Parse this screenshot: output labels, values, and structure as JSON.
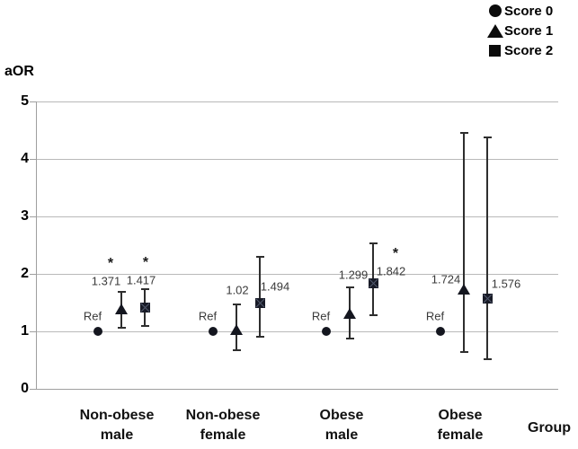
{
  "chart_data": {
    "type": "scatter",
    "title": "",
    "ylabel": "aOR",
    "xlabel": "Group",
    "ylim": [
      0,
      5
    ],
    "yticks": [
      0,
      1,
      2,
      3,
      4,
      5
    ],
    "grid": "horizontal",
    "legend": {
      "position": "top-right",
      "entries": [
        {
          "marker": "circle",
          "label": "Score 0"
        },
        {
          "marker": "triangle",
          "label": "Score 1"
        },
        {
          "marker": "square",
          "label": "Score 2"
        }
      ]
    },
    "categories": [
      [
        "Non-obese",
        "male"
      ],
      [
        "Non-obese",
        "female"
      ],
      [
        "Obese",
        "male"
      ],
      [
        "Obese",
        "female"
      ]
    ],
    "series": [
      {
        "name": "Score 0",
        "marker": "circle",
        "points": [
          {
            "group": 0,
            "value": 1,
            "label": "Ref"
          },
          {
            "group": 1,
            "value": 1,
            "label": "Ref"
          },
          {
            "group": 2,
            "value": 1,
            "label": "Ref"
          },
          {
            "group": 3,
            "value": 1,
            "label": "Ref"
          }
        ]
      },
      {
        "name": "Score 1",
        "marker": "triangle",
        "points": [
          {
            "group": 0,
            "value": 1.371,
            "label": "1.371",
            "ci_low": 1.06,
            "ci_high": 1.68,
            "sig": "*"
          },
          {
            "group": 1,
            "value": 1.02,
            "label": "1.02",
            "ci_low": 0.67,
            "ci_high": 1.47
          },
          {
            "group": 2,
            "value": 1.299,
            "label": "1.299",
            "ci_low": 0.88,
            "ci_high": 1.77
          },
          {
            "group": 3,
            "value": 1.724,
            "label": "1.724",
            "ci_low": 0.64,
            "ci_high": 4.45
          }
        ]
      },
      {
        "name": "Score 2",
        "marker": "square",
        "points": [
          {
            "group": 0,
            "value": 1.417,
            "label": "1.417",
            "ci_low": 1.1,
            "ci_high": 1.73,
            "sig": "*"
          },
          {
            "group": 1,
            "value": 1.494,
            "label": "1.494",
            "ci_low": 0.91,
            "ci_high": 2.3
          },
          {
            "group": 2,
            "value": 1.842,
            "label": "1.842",
            "ci_low": 1.28,
            "ci_high": 2.53,
            "sig": "*"
          },
          {
            "group": 3,
            "value": 1.576,
            "label": "1.576",
            "ci_low": 0.52,
            "ci_high": 4.38
          }
        ]
      }
    ],
    "colors": {
      "marker": "#14161f",
      "error_bar": "#2e2e2e",
      "gridline": "#b9b9b9",
      "axis": "#9f9f9f",
      "text": "#000000",
      "value_label": "#3a3a3a"
    }
  }
}
